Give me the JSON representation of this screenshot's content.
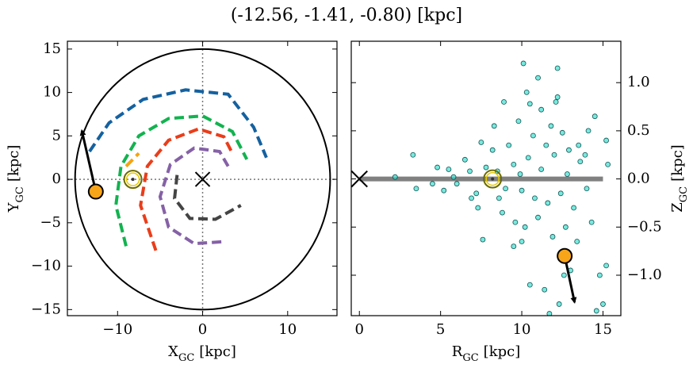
{
  "title": "(-12.56, -1.41, -0.80) [kpc]",
  "chart_data": [
    {
      "type": "line",
      "x_label": {
        "main": "X",
        "sub": "GC",
        "unit": "[kpc]"
      },
      "y_label": {
        "main": "Y",
        "sub": "GC",
        "unit": "[kpc]"
      },
      "xlim": [
        -15.9,
        15.8
      ],
      "ylim": [
        -15.7,
        15.9
      ],
      "xticks": [
        {
          "value": -10,
          "label": "−10"
        },
        0,
        10
      ],
      "yticks": [
        {
          "value": -15,
          "label": "−15"
        },
        {
          "value": -10,
          "label": "−10"
        },
        {
          "value": -5,
          "label": "−5"
        },
        0,
        5,
        10,
        15
      ],
      "boundary_radius": 15,
      "center": {
        "x": 0,
        "y": 0
      },
      "series": [
        {
          "color": "#1461a0",
          "x": [
            -13.3,
            -11,
            -7,
            -2,
            3,
            6,
            7.5
          ],
          "y": [
            3.2,
            6.5,
            9.2,
            10.3,
            9.8,
            6,
            2.5
          ]
        },
        {
          "color": "#12b34f",
          "x": [
            -9,
            -10.2,
            -9.6,
            -7.5,
            -4,
            0,
            3.5,
            5.2
          ],
          "y": [
            -7.7,
            -3,
            1.5,
            5,
            7,
            7.3,
            5.5,
            2.3
          ]
        },
        {
          "color": "#f5a30f",
          "x": [
            -9,
            -7.5
          ],
          "y": [
            1.5,
            3
          ]
        },
        {
          "color": "#ea3d1a",
          "x": [
            -5.5,
            -7.3,
            -6.5,
            -4,
            -0.5,
            2.5,
            3.5
          ],
          "y": [
            -8.2,
            -3,
            1.5,
            4.5,
            5.8,
            4.9,
            3
          ]
        },
        {
          "color": "#8561a6",
          "x": [
            2.2,
            -1,
            -4,
            -5,
            -3.8,
            -1,
            2,
            3
          ],
          "y": [
            -7.2,
            -7.4,
            -5.5,
            -2,
            1.7,
            3.6,
            3.2,
            1.5
          ]
        },
        {
          "color": "#444444",
          "x": [
            -3,
            -3.3,
            -1.5,
            1.5,
            4.5
          ],
          "y": [
            0.5,
            -2.2,
            -4.5,
            -4.6,
            -3
          ]
        }
      ],
      "star": {
        "x": -12.56,
        "y": -1.41,
        "color": "#f9a51a"
      },
      "arrow_to": {
        "x": -14.2,
        "y": 5.6
      },
      "sun": {
        "x": -8.2,
        "y": 0
      }
    },
    {
      "type": "scatter",
      "x_label": {
        "main": "R",
        "sub": "GC",
        "unit": "[kpc]"
      },
      "y_label": {
        "main": "Z",
        "sub": "GC",
        "unit": "[kpc]"
      },
      "xlim": [
        -0.5,
        16.1
      ],
      "ylim": [
        -1.42,
        1.43
      ],
      "xticks": [
        0,
        5,
        10,
        15
      ],
      "yticks": [
        {
          "value": -1.0,
          "label": "−1.0"
        },
        {
          "value": -0.5,
          "label": "−0.5"
        },
        {
          "value": 0.0,
          "label": "0.0"
        },
        {
          "value": 0.5,
          "label": "0.5"
        },
        {
          "value": 1.0,
          "label": "1.0"
        }
      ],
      "color": "#40e0d0",
      "plane": {
        "x": [
          0,
          15
        ],
        "y": 0,
        "color": "#808080"
      },
      "center": {
        "x": 0,
        "y": 0
      },
      "x": [
        10.1,
        12.2,
        11,
        8.9,
        10.5,
        11.2,
        12.1,
        12.2,
        9.8,
        11.8,
        12.5,
        13.5,
        14.1,
        14.5,
        15.3,
        15.2,
        7.5,
        8.3,
        6.5,
        5.5,
        4.8,
        3.3,
        2.2,
        3.5,
        4.5,
        5.2,
        6,
        6.8,
        7.2,
        7.8,
        8.5,
        9,
        9.5,
        10,
        10.4,
        10.8,
        11.2,
        11.6,
        12,
        12.4,
        12.8,
        13.2,
        13.6,
        14,
        7.3,
        8.8,
        9.6,
        10.2,
        11,
        11.9,
        12.7,
        13,
        12.6,
        10.5,
        11.4,
        14.8,
        15.2,
        15,
        14.6,
        11.7,
        12.3,
        10,
        9.5,
        7.6,
        8.2,
        9.2,
        10.7,
        6.9,
        5.8,
        9.9,
        8.6,
        11.5,
        12.9,
        13.9,
        14.3,
        13.4,
        10.3
      ],
      "y": [
        1.2,
        1.15,
        1.05,
        0.8,
        0.78,
        0.72,
        0.8,
        0.85,
        0.6,
        0.55,
        0.48,
        0.35,
        0.5,
        0.65,
        0.15,
        0.4,
        0.38,
        0.55,
        0.2,
        0.1,
        0.12,
        0.25,
        0.02,
        -0.1,
        -0.05,
        -0.12,
        -0.05,
        0.08,
        -0.15,
        0.12,
        0.08,
        -0.1,
        0.15,
        -0.12,
        0.22,
        -0.2,
        0.1,
        -0.25,
        0.25,
        -0.15,
        0.05,
        -0.3,
        0.18,
        -0.1,
        -0.3,
        -0.35,
        -0.45,
        -0.5,
        -0.4,
        -0.6,
        -0.5,
        -0.95,
        -1.0,
        -1.1,
        -1.15,
        -1.0,
        -0.9,
        -1.3,
        -1.37,
        -1.4,
        -1.3,
        -0.65,
        -0.7,
        -0.63,
        0.3,
        0.35,
        0.45,
        -0.2,
        0.02,
        0.05,
        -0.2,
        0.35,
        0.3,
        0.25,
        -0.45,
        -0.65,
        0.9
      ],
      "star": {
        "x": 12.64,
        "y": -0.8,
        "color": "#f9a51a"
      },
      "arrow_to": {
        "x": 13.25,
        "y": -1.28
      },
      "sun": {
        "x": 8.2,
        "y": 0
      }
    }
  ]
}
